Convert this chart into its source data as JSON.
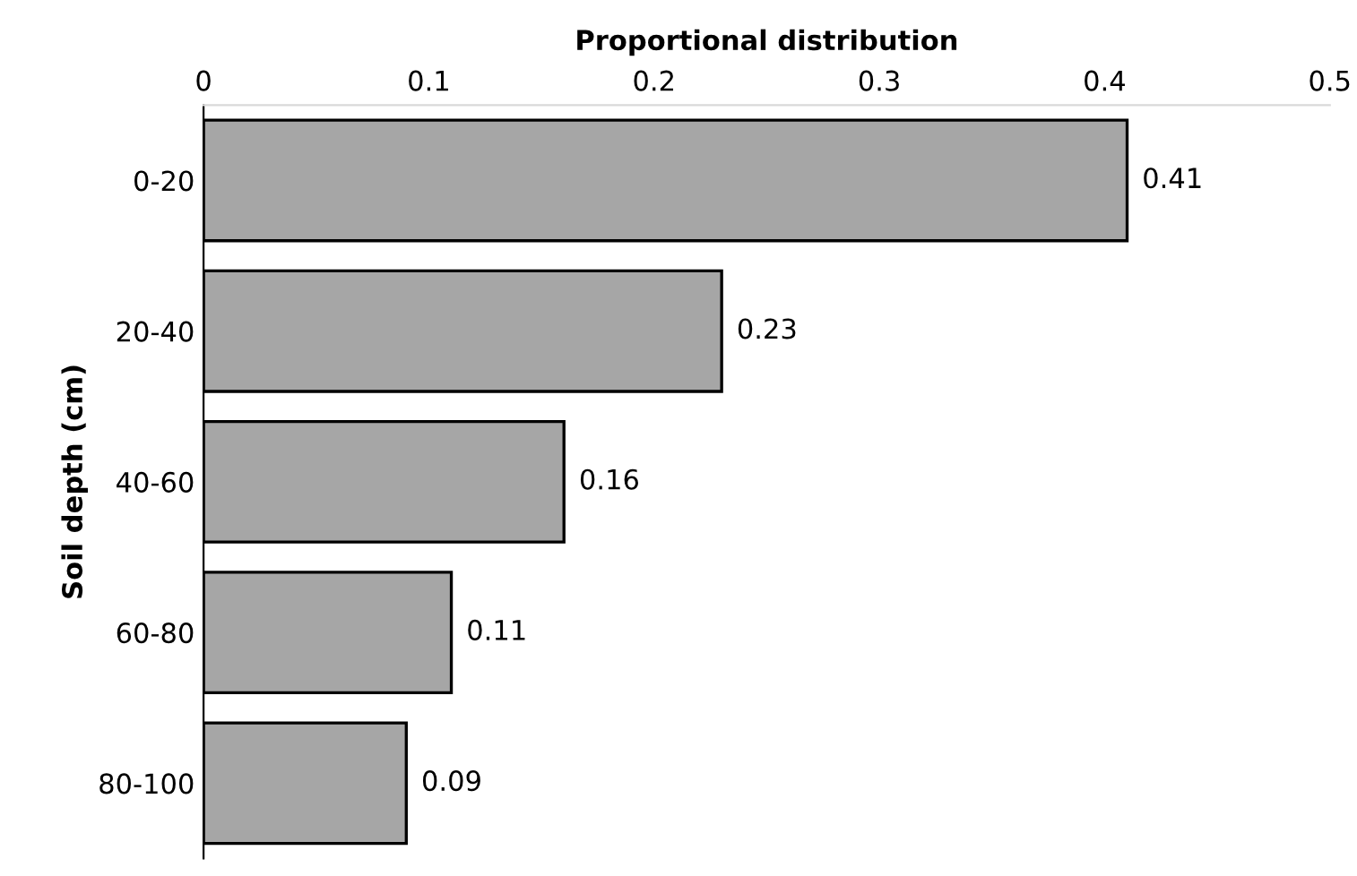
{
  "chart_data": {
    "type": "bar",
    "orientation": "horizontal",
    "xlabel": "Proportional distribution",
    "ylabel": "Soil depth (cm)",
    "categories": [
      "0-20",
      "20-40",
      "40-60",
      "60-80",
      "80-100"
    ],
    "values": [
      0.41,
      0.23,
      0.16,
      0.11,
      0.09
    ],
    "color": "#a6a6a6",
    "xlim": [
      0,
      0.5
    ],
    "xticks": [
      0,
      0.1,
      0.2,
      0.3,
      0.4,
      0.5
    ],
    "data_labels": true,
    "grid": false,
    "legend": false
  }
}
